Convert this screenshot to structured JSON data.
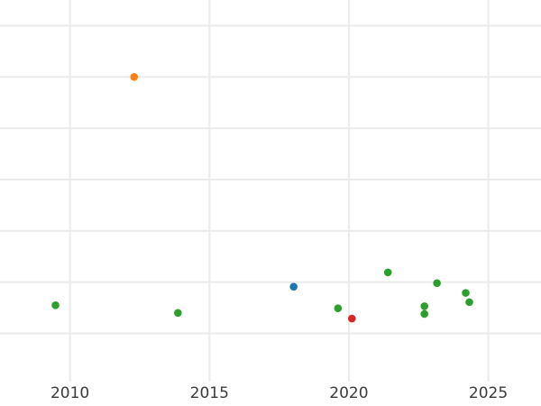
{
  "page": {
    "background_color": "#ffffff"
  },
  "chart_data": {
    "type": "scatter",
    "title": "",
    "subtitle": "",
    "xlabel": "",
    "ylabel": "",
    "legend_position": "none",
    "grid": true,
    "grid_color": "#ebebeb",
    "tick_label_color": "#3a3a3a",
    "background_color": "#ffffff",
    "x_tick_values": [
      2010,
      2015,
      2020,
      2025
    ],
    "x_tick_labels": [
      "2010",
      "2015",
      "2020",
      "2025"
    ],
    "x_range": [
      2007.49,
      2026.89
    ],
    "y_tick_labels": [],
    "y_gridline_values": [
      0,
      1,
      2,
      3,
      4,
      5,
      6
    ],
    "y_range": [
      -0.94,
      6.5
    ],
    "marker_diameter_px": 8.6,
    "series": [
      {
        "name": "green-series",
        "color": "#2ca02c",
        "points": [
          [
            2009.48,
            0.55
          ],
          [
            2013.87,
            0.4
          ],
          [
            2019.61,
            0.49
          ],
          [
            2021.4,
            1.19
          ],
          [
            2022.71,
            0.53
          ],
          [
            2022.71,
            0.38
          ],
          [
            2023.16,
            0.98
          ],
          [
            2024.19,
            0.79
          ],
          [
            2024.32,
            0.61
          ]
        ]
      },
      {
        "name": "orange-series",
        "color": "#ff7f0e",
        "points": [
          [
            2012.3,
            5.0
          ]
        ]
      },
      {
        "name": "blue-series",
        "color": "#1f77b4",
        "points": [
          [
            2018.02,
            0.91
          ]
        ]
      },
      {
        "name": "red-series",
        "color": "#d62728",
        "points": [
          [
            2020.11,
            0.29
          ]
        ]
      }
    ]
  }
}
